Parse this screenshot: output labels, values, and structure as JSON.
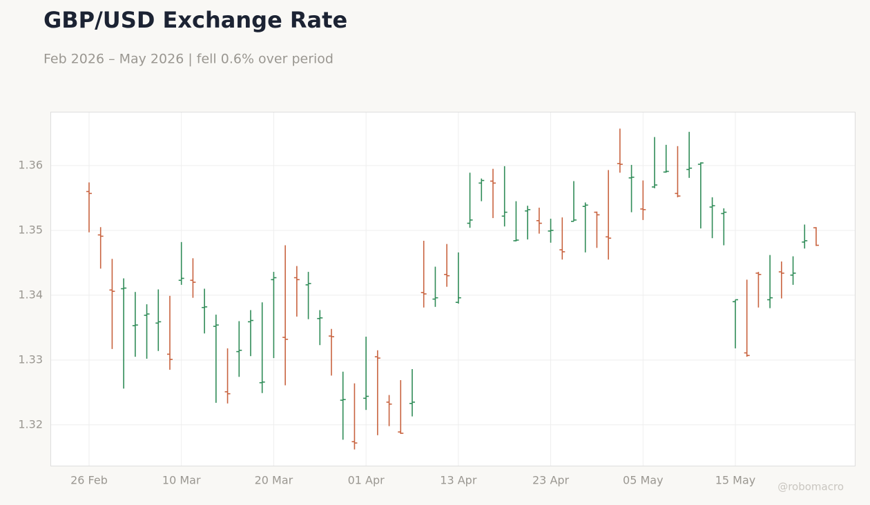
{
  "chart_data": {
    "type": "ohlc",
    "title": "GBP/USD Exchange Rate",
    "subtitle": "Feb 2026 – May 2026 | fell 0.6% over period",
    "watermark": "@robomacro",
    "categories": [
      "26 Feb",
      null,
      null,
      null,
      null,
      null,
      null,
      null,
      "10 Mar",
      null,
      null,
      null,
      null,
      null,
      null,
      null,
      "20 Mar",
      null,
      null,
      null,
      null,
      null,
      null,
      null,
      "01 Apr",
      null,
      null,
      null,
      null,
      null,
      null,
      null,
      "13 Apr",
      null,
      null,
      null,
      null,
      null,
      null,
      null,
      "23 Apr",
      null,
      null,
      null,
      null,
      null,
      null,
      null,
      "05 May",
      null,
      null,
      null,
      null,
      null,
      null,
      null,
      "15 May",
      null,
      null,
      null,
      null,
      null,
      null,
      null
    ],
    "open": [
      1.356,
      1.3493,
      1.3408,
      1.341,
      1.3353,
      1.3369,
      1.3357,
      1.3309,
      1.3423,
      1.3423,
      1.3381,
      1.3352,
      1.3251,
      1.3313,
      1.3359,
      1.3265,
      1.3424,
      1.3335,
      1.3427,
      1.3416,
      1.3364,
      1.3337,
      1.3238,
      1.3174,
      1.3241,
      1.3305,
      1.3235,
      1.3189,
      1.3233,
      1.3404,
      1.3394,
      1.3432,
      1.3389,
      1.3511,
      1.3573,
      1.3576,
      1.3522,
      1.3484,
      1.353,
      1.3515,
      1.3499,
      1.347,
      1.3514,
      1.3537,
      1.3528,
      1.349,
      1.3603,
      1.3581,
      1.3533,
      1.3567,
      1.359,
      1.3557,
      1.3594,
      1.3602,
      1.3536,
      1.3526,
      1.339,
      1.3311,
      1.3434,
      1.3393,
      1.3436,
      1.3431,
      1.3482,
      1.3504
    ],
    "high": [
      1.3574,
      1.3505,
      1.3456,
      1.3426,
      1.3405,
      1.3386,
      1.3409,
      1.3399,
      1.3482,
      1.3457,
      1.341,
      1.337,
      1.3318,
      1.336,
      1.3377,
      1.3389,
      1.3436,
      1.3477,
      1.3445,
      1.3436,
      1.3377,
      1.3348,
      1.3282,
      1.3264,
      1.3336,
      1.3315,
      1.3246,
      1.3269,
      1.3286,
      1.3484,
      1.3444,
      1.3479,
      1.3466,
      1.3589,
      1.358,
      1.3595,
      1.3599,
      1.3545,
      1.3538,
      1.3535,
      1.3518,
      1.352,
      1.3576,
      1.3543,
      1.3529,
      1.3593,
      1.3657,
      1.3601,
      1.3577,
      1.3644,
      1.3632,
      1.363,
      1.3652,
      1.3605,
      1.3551,
      1.3534,
      1.3393,
      1.3424,
      1.3436,
      1.3462,
      1.3452,
      1.346,
      1.3509,
      1.3505
    ],
    "low": [
      1.3497,
      1.3441,
      1.3317,
      1.3256,
      1.3305,
      1.3302,
      1.3314,
      1.3285,
      1.3416,
      1.3396,
      1.3341,
      1.3234,
      1.3233,
      1.3274,
      1.3306,
      1.3249,
      1.3303,
      1.3261,
      1.3367,
      1.3363,
      1.3323,
      1.3276,
      1.3177,
      1.3162,
      1.3223,
      1.3184,
      1.3198,
      1.3186,
      1.3213,
      1.3381,
      1.3382,
      1.3413,
      1.3387,
      1.3504,
      1.3545,
      1.3519,
      1.3506,
      1.3483,
      1.3486,
      1.3495,
      1.3481,
      1.3455,
      1.3514,
      1.3466,
      1.3473,
      1.3455,
      1.3589,
      1.3528,
      1.3516,
      1.3565,
      1.3589,
      1.3551,
      1.3581,
      1.3503,
      1.3488,
      1.3477,
      1.3318,
      1.3305,
      1.3381,
      1.338,
      1.3395,
      1.3416,
      1.3472,
      1.3476
    ],
    "close": [
      1.3557,
      1.3491,
      1.3406,
      1.3411,
      1.3354,
      1.3371,
      1.3359,
      1.3301,
      1.3426,
      1.342,
      1.3382,
      1.3354,
      1.3248,
      1.3315,
      1.3361,
      1.3266,
      1.3427,
      1.3332,
      1.3424,
      1.3418,
      1.3365,
      1.3336,
      1.3239,
      1.3172,
      1.3244,
      1.3303,
      1.3232,
      1.3187,
      1.3235,
      1.3402,
      1.3396,
      1.343,
      1.3396,
      1.3516,
      1.3577,
      1.3573,
      1.3528,
      1.3485,
      1.3532,
      1.3511,
      1.35,
      1.3467,
      1.3516,
      1.3539,
      1.3524,
      1.3488,
      1.3602,
      1.3582,
      1.3532,
      1.357,
      1.3591,
      1.3553,
      1.3596,
      1.3604,
      1.3538,
      1.3528,
      1.3393,
      1.3307,
      1.3432,
      1.3396,
      1.3434,
      1.3434,
      1.3484,
      1.3477
    ],
    "up_color": "#2e8b57",
    "down_color": "#c8623e",
    "ylim": [
      1.3137,
      1.3683
    ],
    "yticks": [
      1.32,
      1.33,
      1.34,
      1.35,
      1.36
    ],
    "grid": true
  }
}
